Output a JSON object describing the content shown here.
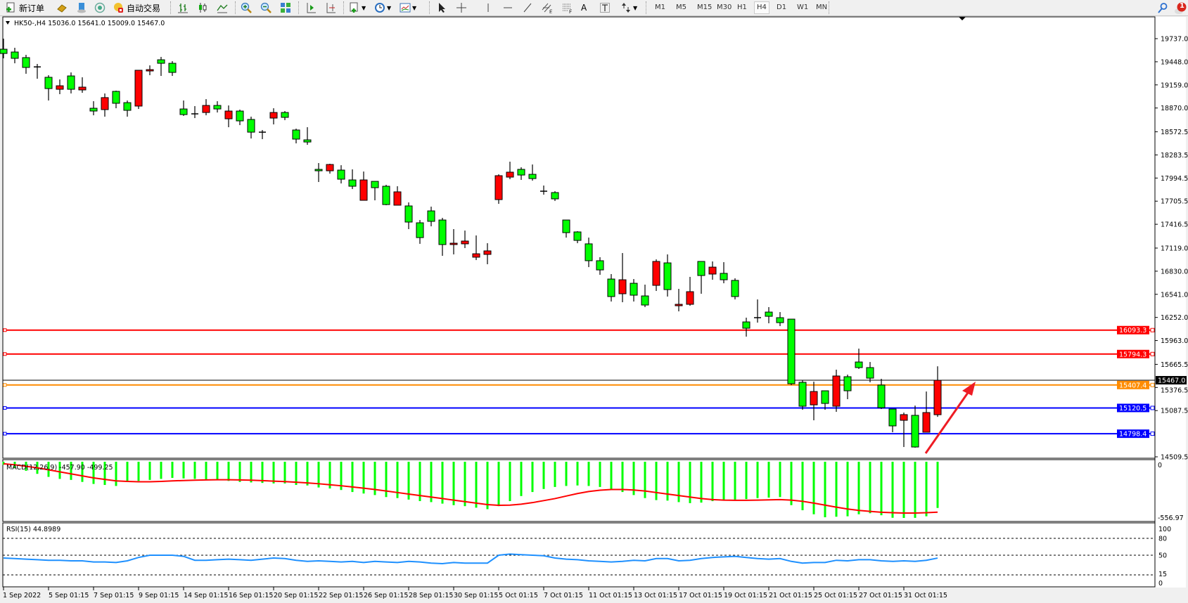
{
  "toolbar": {
    "new_order_label": "新订单",
    "auto_trading_label": "自动交易",
    "text_tool_label": "A",
    "timeframes": [
      "M1",
      "M5",
      "M15",
      "M30",
      "H1",
      "H4",
      "D1",
      "W1",
      "MN"
    ],
    "active_timeframe": "H4",
    "notification_count": "1"
  },
  "chart": {
    "header": "HK50-,H4  15036.0 15641.0 15009.0 15467.0",
    "symbol": "HK50-",
    "timeframe": "H4",
    "colors": {
      "bull": "#ff0000",
      "bear": "#00ff00",
      "outline": "#000000",
      "macd_hist": "#00ff00",
      "macd_signal": "#ff0000",
      "rsi": "#1e90ff",
      "arrow": "#ee1c24"
    },
    "price_ticks": [
      "19737.0",
      "19448.0",
      "19159.0",
      "18870.0",
      "18572.5",
      "18283.5",
      "17994.5",
      "17705.5",
      "17416.5",
      "17119.0",
      "16830.0",
      "16541.0",
      "16252.0",
      "15963.0",
      "15665.5",
      "15376.5",
      "15087.5",
      "14509.5"
    ],
    "current_price": {
      "value": 15467.0,
      "label": "15467.0",
      "color": "#000000"
    },
    "hlines": [
      {
        "value": 16093.3,
        "label": "16093.3",
        "color": "#ff0000"
      },
      {
        "value": 15794.3,
        "label": "15794.3",
        "color": "#ff0000"
      },
      {
        "value": 15407.4,
        "label": "15407.4",
        "color": "#ff8c00"
      },
      {
        "value": 15120.5,
        "label": "15120.5",
        "color": "#0000ff"
      },
      {
        "value": 14798.4,
        "label": "14798.4",
        "color": "#0000ff"
      }
    ],
    "time_labels": [
      "1 Sep 2022",
      "5 Sep 01:15",
      "7 Sep 01:15",
      "9 Sep 01:15",
      "14 Sep 01:15",
      "16 Sep 01:15",
      "20 Sep 01:15",
      "22 Sep 01:15",
      "26 Sep 01:15",
      "28 Sep 01:15",
      "30 Sep 01:15",
      "5 Oct 01:15",
      "7 Oct 01:15",
      "11 Oct 01:15",
      "13 Oct 01:15",
      "17 Oct 01:15",
      "19 Oct 01:15",
      "21 Oct 01:15",
      "25 Oct 01:15",
      "27 Oct 01:15",
      "31 Oct 01:15"
    ]
  },
  "macd": {
    "label": "MACD(12,26,9) -457.90 -499.25",
    "scale_top": "0",
    "scale_bottom": "-556.97"
  },
  "rsi": {
    "label": "RSI(15) 44.8989",
    "levels": [
      "100",
      "80",
      "50",
      "15",
      "0"
    ]
  },
  "chart_data": {
    "type": "candlestick",
    "ohlc": [
      [
        19605,
        19737,
        19491,
        19552
      ],
      [
        19570,
        19623,
        19429,
        19491
      ],
      [
        19500,
        19535,
        19298,
        19377
      ],
      [
        19386,
        19421,
        19236,
        19384
      ],
      [
        19254,
        19280,
        18964,
        19113
      ],
      [
        19104,
        19227,
        19043,
        19148
      ],
      [
        19271,
        19315,
        19052,
        19104
      ],
      [
        19096,
        19254,
        19060,
        19131
      ],
      [
        18867,
        18955,
        18779,
        18832
      ],
      [
        18850,
        19052,
        18762,
        19000
      ],
      [
        19078,
        19087,
        18867,
        18929
      ],
      [
        18937,
        18964,
        18762,
        18841
      ],
      [
        18894,
        19342,
        18858,
        19342
      ],
      [
        19333,
        19403,
        19280,
        19350
      ],
      [
        19473,
        19509,
        19271,
        19429
      ],
      [
        19429,
        19456,
        19271,
        19315
      ],
      [
        18858,
        18964,
        18771,
        18788
      ],
      [
        18797,
        18894,
        18744,
        18797
      ],
      [
        18814,
        18981,
        18779,
        18902
      ],
      [
        18902,
        18955,
        18814,
        18858
      ],
      [
        18735,
        18902,
        18630,
        18832
      ],
      [
        18832,
        18850,
        18656,
        18709
      ],
      [
        18727,
        18762,
        18489,
        18568
      ],
      [
        18568,
        18595,
        18481,
        18568
      ],
      [
        18744,
        18867,
        18665,
        18814
      ],
      [
        18814,
        18832,
        18718,
        18753
      ],
      [
        18595,
        18612,
        18428,
        18481
      ],
      [
        18472,
        18630,
        18410,
        18445
      ],
      [
        18103,
        18182,
        17945,
        18085
      ],
      [
        18085,
        18173,
        18050,
        18164
      ],
      [
        18094,
        18155,
        17927,
        17980
      ],
      [
        17971,
        18103,
        17857,
        17892
      ],
      [
        17716,
        18076,
        17716,
        17971
      ],
      [
        17953,
        17953,
        17716,
        17874
      ],
      [
        17892,
        17910,
        17655,
        17663
      ],
      [
        17655,
        17892,
        17655,
        17822
      ],
      [
        17646,
        17690,
        17356,
        17444
      ],
      [
        17435,
        17470,
        17172,
        17250
      ],
      [
        17584,
        17637,
        17391,
        17453
      ],
      [
        17470,
        17497,
        17022,
        17163
      ],
      [
        17163,
        17356,
        17040,
        17180
      ],
      [
        17172,
        17338,
        17119,
        17207
      ],
      [
        17005,
        17277,
        16969,
        17048
      ],
      [
        17040,
        17180,
        16917,
        17084
      ],
      [
        17725,
        18041,
        17672,
        18024
      ],
      [
        18006,
        18199,
        17980,
        18068
      ],
      [
        18103,
        18129,
        17971,
        18032
      ],
      [
        18041,
        18164,
        17962,
        17988
      ],
      [
        17830,
        17901,
        17787,
        17830
      ],
      [
        17813,
        17830,
        17708,
        17734
      ],
      [
        17470,
        17470,
        17250,
        17312
      ],
      [
        17321,
        17330,
        17180,
        17215
      ],
      [
        17172,
        17250,
        16881,
        16961
      ],
      [
        16961,
        17005,
        16785,
        16846
      ],
      [
        16732,
        16794,
        16451,
        16513
      ],
      [
        16548,
        17057,
        16442,
        16723
      ],
      [
        16679,
        16732,
        16451,
        16530
      ],
      [
        16521,
        16662,
        16381,
        16407
      ],
      [
        16653,
        16978,
        16583,
        16952
      ],
      [
        16934,
        17040,
        16513,
        16600
      ],
      [
        16398,
        16609,
        16328,
        16416
      ],
      [
        16416,
        16759,
        16398,
        16574
      ],
      [
        16952,
        16952,
        16548,
        16776
      ],
      [
        16794,
        16952,
        16723,
        16881
      ],
      [
        16803,
        16943,
        16679,
        16723
      ],
      [
        16715,
        16741,
        16477,
        16513
      ],
      [
        16196,
        16249,
        16012,
        16117
      ],
      [
        16249,
        16477,
        16187,
        16249
      ],
      [
        16319,
        16381,
        16179,
        16266
      ],
      [
        16249,
        16319,
        16144,
        16187
      ],
      [
        16231,
        16231,
        15406,
        15423
      ],
      [
        15441,
        15467,
        15098,
        15142
      ],
      [
        15159,
        15449,
        14966,
        15326
      ],
      [
        15335,
        15335,
        15098,
        15177
      ],
      [
        15142,
        15599,
        15072,
        15520
      ],
      [
        15511,
        15537,
        15230,
        15335
      ],
      [
        15695,
        15862,
        15608,
        15625
      ],
      [
        15625,
        15695,
        15441,
        15493
      ],
      [
        15406,
        15485,
        15107,
        15124
      ],
      [
        15107,
        15107,
        14817,
        14896
      ],
      [
        14966,
        15063,
        14632,
        15037
      ],
      [
        15028,
        15150,
        14624,
        14632
      ],
      [
        14817,
        15326,
        14817,
        15063
      ],
      [
        15036,
        15641,
        15009,
        15467
      ]
    ],
    "price_range": [
      14509.5,
      19737.0
    ],
    "macd_hist": [
      -30,
      -60,
      -90,
      -120,
      -150,
      -170,
      -180,
      -200,
      -220,
      -230,
      -240,
      -200,
      -190,
      -180,
      -170,
      -160,
      -165,
      -170,
      -175,
      -180,
      -190,
      -200,
      -205,
      -210,
      -215,
      -215,
      -230,
      -235,
      -255,
      -265,
      -280,
      -300,
      -315,
      -330,
      -350,
      -360,
      -375,
      -390,
      -400,
      -415,
      -430,
      -440,
      -455,
      -470,
      -440,
      -390,
      -340,
      -300,
      -270,
      -250,
      -240,
      -235,
      -240,
      -250,
      -270,
      -300,
      -330,
      -360,
      -380,
      -385,
      -400,
      -410,
      -405,
      -390,
      -380,
      -375,
      -370,
      -360,
      -355,
      -350,
      -430,
      -480,
      -520,
      -550,
      -545,
      -540,
      -520,
      -510,
      -530,
      -555,
      -556.97,
      -556,
      -540,
      -457.9
    ],
    "macd_signal": [
      -20,
      -30,
      -45,
      -60,
      -80,
      -100,
      -120,
      -140,
      -160,
      -175,
      -190,
      -195,
      -198,
      -198,
      -195,
      -190,
      -186,
      -183,
      -180,
      -178,
      -178,
      -180,
      -183,
      -187,
      -192,
      -197,
      -203,
      -210,
      -218,
      -228,
      -238,
      -250,
      -262,
      -275,
      -290,
      -305,
      -320,
      -335,
      -350,
      -365,
      -380,
      -395,
      -410,
      -425,
      -432,
      -430,
      -420,
      -405,
      -385,
      -365,
      -340,
      -315,
      -295,
      -282,
      -275,
      -275,
      -280,
      -290,
      -305,
      -320,
      -335,
      -350,
      -365,
      -375,
      -380,
      -382,
      -382,
      -380,
      -378,
      -375,
      -380,
      -392,
      -410,
      -430,
      -450,
      -468,
      -482,
      -492,
      -500,
      -505,
      -508,
      -508,
      -505,
      -499.25
    ],
    "macd_range": [
      -556.97,
      0
    ],
    "rsi": [
      45,
      44,
      43,
      42,
      41,
      41,
      40,
      40,
      38,
      38,
      37,
      40,
      46,
      50,
      50,
      50,
      48,
      41,
      41,
      42,
      43,
      42,
      41,
      43,
      45,
      44,
      41,
      39,
      40,
      39,
      38,
      39,
      37,
      39,
      38,
      37,
      39,
      38,
      36,
      35,
      37,
      36,
      36,
      36,
      50,
      52,
      51,
      50,
      49,
      45,
      43,
      42,
      40,
      39,
      38,
      39,
      41,
      40,
      44,
      44,
      40,
      41,
      44,
      46,
      47,
      48,
      46,
      44,
      43,
      44,
      39,
      36,
      37,
      37,
      41,
      40,
      42,
      42,
      40,
      39,
      40,
      39,
      41,
      44.8989
    ],
    "rsi_range": [
      0,
      100
    ],
    "rsi_levels": [
      80,
      50,
      15
    ]
  }
}
